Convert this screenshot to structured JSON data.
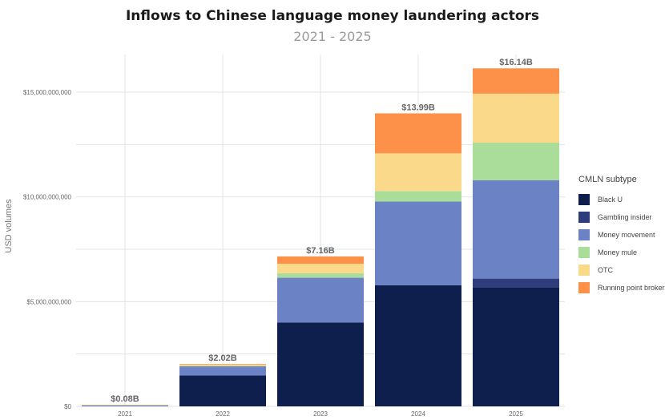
{
  "chart_data": {
    "type": "bar",
    "stacked": true,
    "title": "Inflows to Chinese language money laundering actors",
    "subtitle": "2021 - 2025",
    "ylabel": "USD volumes",
    "xlabel": "",
    "categories": [
      "2021",
      "2022",
      "2023",
      "2024",
      "2025"
    ],
    "ylim": [
      0,
      16800000000
    ],
    "yticks": [
      0,
      5000000000,
      10000000000,
      15000000000
    ],
    "ytick_labels": [
      "$0",
      "$5,000,000,000",
      "$10,000,000,000",
      "$15,000,000,000"
    ],
    "totals_labels": [
      "$0.08B",
      "$2.02B",
      "$7.16B",
      "$13.99B",
      "$16.14B"
    ],
    "grid": true,
    "legend_title": "CMLN subtype",
    "legend_position": "right",
    "series": [
      {
        "name": "Black U",
        "color": "#0f1f4d",
        "values": [
          0.0,
          1480000000,
          4000000000,
          5780000000,
          5680000000
        ]
      },
      {
        "name": "Gambling insider",
        "color": "#2e3d7c",
        "values": [
          0.0,
          0.0,
          0.0,
          0.0,
          420000000
        ]
      },
      {
        "name": "Money movement",
        "color": "#6b83c4",
        "values": [
          70000000,
          440000000,
          2140000000,
          4000000000,
          4700000000
        ]
      },
      {
        "name": "Money mule",
        "color": "#aadd9a",
        "values": [
          0.0,
          20000000,
          220000000,
          500000000,
          1790000000
        ]
      },
      {
        "name": "OTC",
        "color": "#fad98a",
        "values": [
          10000000,
          60000000,
          450000000,
          1800000000,
          2340000000
        ]
      },
      {
        "name": "Running point broker",
        "color": "#fd914a",
        "values": [
          0.0,
          20000000,
          350000000,
          1910000000,
          1210000000
        ]
      }
    ]
  }
}
